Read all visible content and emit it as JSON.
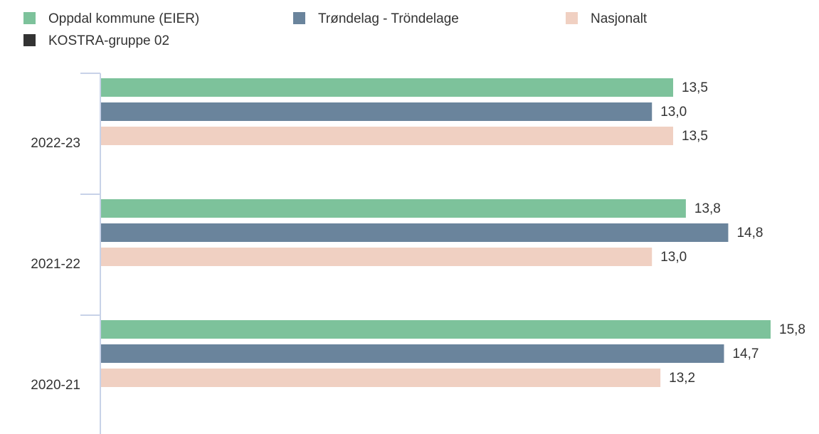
{
  "chart_data": {
    "type": "hbar",
    "categories": [
      "2022-23",
      "2021-22",
      "2020-21"
    ],
    "series": [
      {
        "name": "Oppdal kommune (EIER)",
        "color": "#7dc29b",
        "values": [
          13.5,
          13.8,
          15.8
        ],
        "value_labels": [
          "13,5",
          "13,8",
          "15,8"
        ]
      },
      {
        "name": "Trøndelag - Tröndelage",
        "color": "#6a849c",
        "values": [
          13.0,
          14.8,
          14.7
        ],
        "value_labels": [
          "13,0",
          "14,8",
          "14,7"
        ]
      },
      {
        "name": "Nasjonalt",
        "color": "#f0d0c2",
        "values": [
          13.5,
          13.0,
          13.2
        ],
        "value_labels": [
          "13,5",
          "13,0",
          "13,2"
        ]
      },
      {
        "name": "KOSTRA-gruppe 02",
        "color": "#333333",
        "values": [
          null,
          null,
          null
        ]
      }
    ]
  }
}
